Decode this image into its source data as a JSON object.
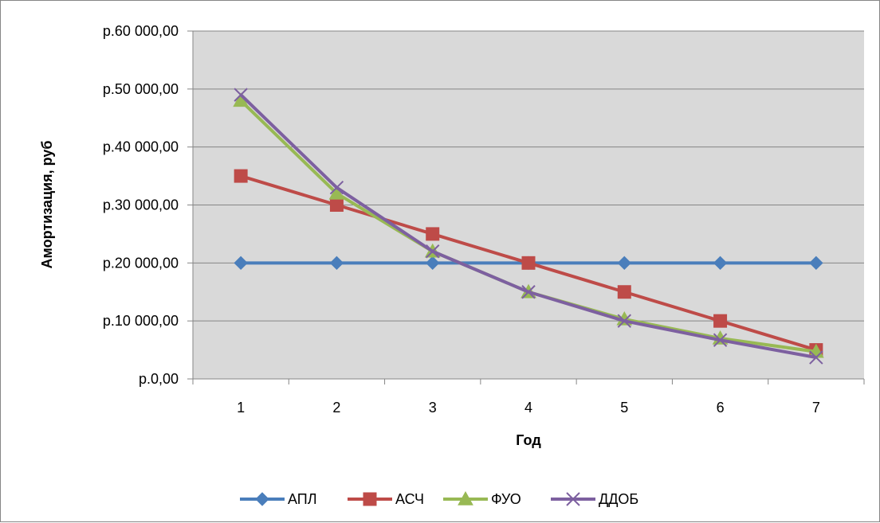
{
  "chart_data": {
    "type": "line",
    "title": "",
    "xlabel": "Год",
    "ylabel": "Амортизация, руб",
    "categories": [
      "1",
      "2",
      "3",
      "4",
      "5",
      "6",
      "7"
    ],
    "ylim": [
      0,
      60000
    ],
    "y_ticks": [
      0,
      10000,
      20000,
      30000,
      40000,
      50000,
      60000
    ],
    "y_tick_labels": [
      "р.0,00",
      "р.10 000,00",
      "р.20 000,00",
      "р.30 000,00",
      "р.40 000,00",
      "р.50 000,00",
      "р.60 000,00"
    ],
    "grid": true,
    "plot_background": "#d9d9d9",
    "legend_position": "bottom",
    "series": [
      {
        "name": "АПЛ",
        "color": "#4a7ebb",
        "marker": "diamond",
        "values": [
          20000,
          20000,
          20000,
          20000,
          20000,
          20000,
          20000
        ]
      },
      {
        "name": "АСЧ",
        "color": "#be4b48",
        "marker": "square",
        "values": [
          35000,
          30000,
          25000,
          20000,
          15000,
          10000,
          5000
        ]
      },
      {
        "name": "ФУО",
        "color": "#98b954",
        "marker": "triangle",
        "values": [
          48000,
          32000,
          22000,
          15000,
          10300,
          7000,
          4700
        ]
      },
      {
        "name": "ДДОБ",
        "color": "#7d60a0",
        "marker": "x",
        "values": [
          49000,
          33000,
          22000,
          15000,
          10000,
          6700,
          3700
        ]
      }
    ]
  }
}
